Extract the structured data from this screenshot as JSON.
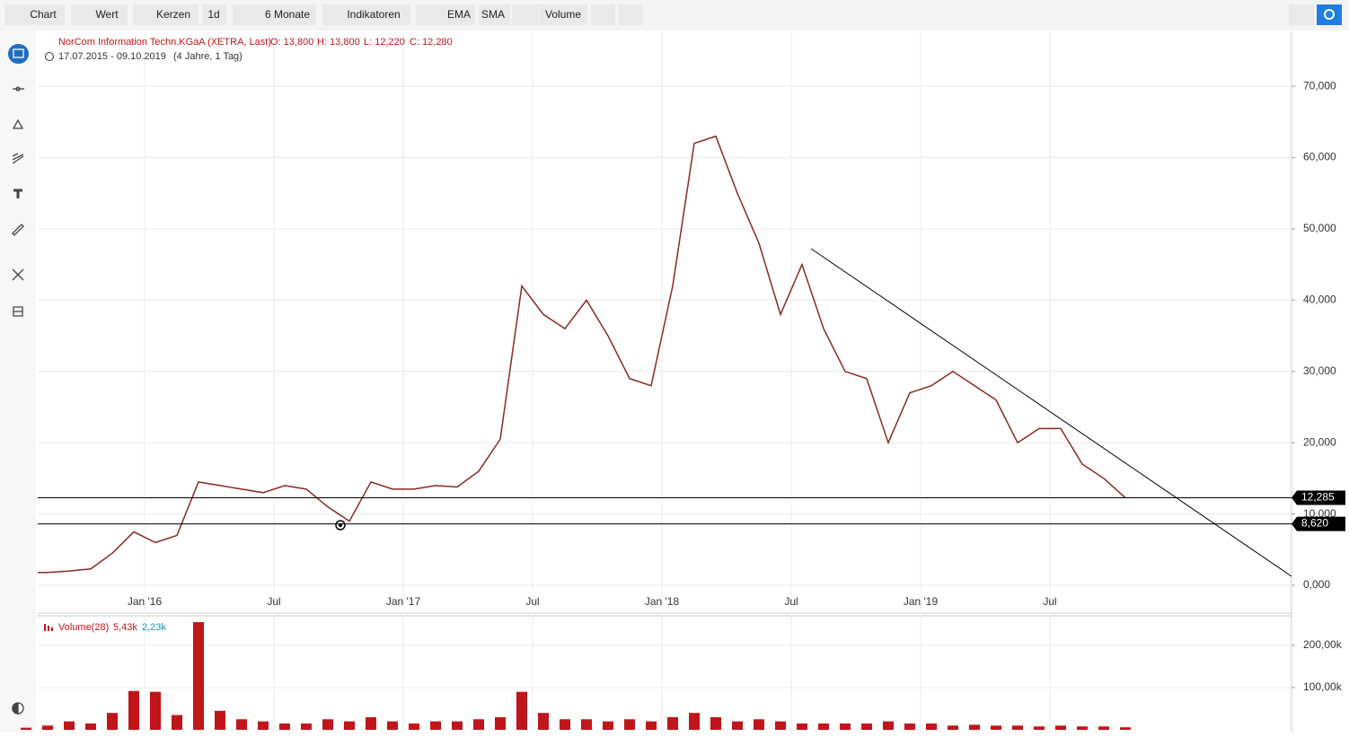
{
  "toolbar": [
    "Chart",
    "Wert",
    "Kerzen",
    "1d",
    "6 Monate",
    "Indikatoren",
    "EMA",
    "SMA",
    "Volume"
  ],
  "chart_data": [
    {
      "type": "line",
      "title": "NorCom Information Techn.KGaA (XETRA, Last)",
      "ohlc": [
        "O: 13,800",
        "H: 13,800",
        "L: 12,220",
        "C: 12,280"
      ],
      "subtitle": "17.07.2015 - 09.10.2019",
      "period": "(4 Jahre, 1 Tag)",
      "x": [
        "2015-07",
        "2015-08",
        "2015-09",
        "2015-10",
        "2015-11",
        "2015-12",
        "2016-01",
        "2016-02",
        "2016-03",
        "2016-04",
        "2016-05",
        "2016-06",
        "2016-07",
        "2016-08",
        "2016-09",
        "2016-10",
        "2016-11",
        "2016-12",
        "2017-01",
        "2017-02",
        "2017-03",
        "2017-04",
        "2017-05",
        "2017-06",
        "2017-07",
        "2017-08",
        "2017-09",
        "2017-10",
        "2017-11",
        "2017-12",
        "2018-01",
        "2018-02",
        "2018-03",
        "2018-04",
        "2018-05",
        "2018-06",
        "2018-07",
        "2018-08",
        "2018-09",
        "2018-10",
        "2018-11",
        "2018-12",
        "2019-01",
        "2019-02",
        "2019-03",
        "2019-04",
        "2019-05",
        "2019-06",
        "2019-07",
        "2019-08",
        "2019-09",
        "2019-10"
      ],
      "values": [
        1.8,
        1.8,
        2.0,
        2.3,
        4.5,
        7.5,
        6.0,
        7.0,
        14.5,
        14.0,
        13.5,
        13.0,
        14.0,
        13.5,
        11.0,
        9.0,
        14.5,
        13.5,
        13.5,
        14.0,
        13.8,
        16.0,
        20.5,
        42.0,
        38.0,
        36.0,
        40.0,
        35.0,
        29.0,
        28.0,
        42.0,
        62.0,
        63.0,
        55.0,
        48.0,
        38.0,
        45.0,
        36.0,
        30.0,
        29.0,
        20.0,
        27.0,
        28.0,
        30.0,
        28.0,
        26.0,
        20.0,
        22.0,
        22.0,
        17.0,
        15.0,
        12.28
      ],
      "color": "#8a2a22",
      "levels": [
        {
          "value": 12.285,
          "label": "12,285"
        },
        {
          "value": 8.62,
          "label": "8,620"
        }
      ],
      "ylim": [
        -3.9,
        77.7
      ],
      "yticks": [
        {
          "value": 0,
          "label": "0,000"
        },
        {
          "value": 10,
          "label": "10,000"
        },
        {
          "value": 20,
          "label": "20,000"
        },
        {
          "value": 30,
          "label": "30,000"
        },
        {
          "value": 40,
          "label": "40,000"
        },
        {
          "value": 50,
          "label": "50,000"
        },
        {
          "value": 60,
          "label": "60,000"
        },
        {
          "value": 70,
          "label": "70,000"
        }
      ],
      "xticks": [
        {
          "value": "2016-01",
          "label": "Jan '16"
        },
        {
          "value": "2016-07",
          "label": "Jul"
        },
        {
          "value": "2017-01",
          "label": "Jan '17"
        },
        {
          "value": "2017-07",
          "label": "Jul"
        },
        {
          "value": "2018-01",
          "label": "Jan '18"
        },
        {
          "value": "2018-07",
          "label": "Jul"
        },
        {
          "value": "2019-01",
          "label": "Jan '19"
        },
        {
          "value": "2019-07",
          "label": "Jul"
        }
      ],
      "grid": true
    },
    {
      "type": "bar",
      "title": "Volume(28)",
      "annotations": [
        "5,43k",
        "2,23k"
      ],
      "x": [
        "2015-07",
        "2015-08",
        "2015-09",
        "2015-10",
        "2015-11",
        "2015-12",
        "2016-01",
        "2016-02",
        "2016-03",
        "2016-04",
        "2016-05",
        "2016-06",
        "2016-07",
        "2016-08",
        "2016-09",
        "2016-10",
        "2016-11",
        "2016-12",
        "2017-01",
        "2017-02",
        "2017-03",
        "2017-04",
        "2017-05",
        "2017-06",
        "2017-07",
        "2017-08",
        "2017-09",
        "2017-10",
        "2017-11",
        "2017-12",
        "2018-01",
        "2018-02",
        "2018-03",
        "2018-04",
        "2018-05",
        "2018-06",
        "2018-07",
        "2018-08",
        "2018-09",
        "2018-10",
        "2018-11",
        "2018-12",
        "2019-01",
        "2019-02",
        "2019-03",
        "2019-04",
        "2019-05",
        "2019-06",
        "2019-07",
        "2019-08",
        "2019-09",
        "2019-10"
      ],
      "values": [
        5000,
        10000,
        20000,
        15000,
        40000,
        92000,
        90000,
        35000,
        255000,
        45000,
        25000,
        20000,
        15000,
        15000,
        25000,
        20000,
        30000,
        20000,
        15000,
        20000,
        20000,
        25000,
        30000,
        90000,
        40000,
        25000,
        25000,
        20000,
        25000,
        20000,
        30000,
        40000,
        30000,
        20000,
        25000,
        20000,
        15000,
        15000,
        15000,
        15000,
        20000,
        15000,
        15000,
        10000,
        12000,
        10000,
        10000,
        8000,
        10000,
        8000,
        8000,
        6000
      ],
      "color": "#c0161a",
      "ylim": [
        0,
        270000
      ],
      "yticks": [
        {
          "value": 100000,
          "label": "100,00k"
        },
        {
          "value": 200000,
          "label": "200,00k"
        }
      ],
      "grid": true
    }
  ]
}
